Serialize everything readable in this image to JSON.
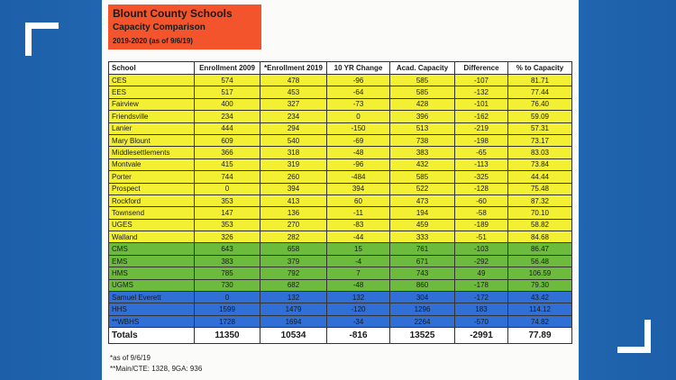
{
  "header": {
    "title": "Blount County Schools",
    "subtitle": "Capacity Comparison",
    "date": "2019-2020 (as of 9/6/19)"
  },
  "table": {
    "columns": [
      "School",
      "Enrollment 2009",
      "*Enrollment 2019",
      "10 YR Change",
      "Acad. Capacity",
      "Difference",
      "% to Capacity"
    ],
    "rows": [
      [
        "CES",
        "574",
        "478",
        "-96",
        "585",
        "-107",
        "81.71"
      ],
      [
        "EES",
        "517",
        "453",
        "-64",
        "585",
        "-132",
        "77.44"
      ],
      [
        "Fairview",
        "400",
        "327",
        "-73",
        "428",
        "-101",
        "76.40"
      ],
      [
        "Friendsville",
        "234",
        "234",
        "0",
        "396",
        "-162",
        "59.09"
      ],
      [
        "Lanier",
        "444",
        "294",
        "-150",
        "513",
        "-219",
        "57.31"
      ],
      [
        "Mary Blount",
        "609",
        "540",
        "-69",
        "738",
        "-198",
        "73.17"
      ],
      [
        "Middlesettlements",
        "366",
        "318",
        "-48",
        "383",
        "-65",
        "83.03"
      ],
      [
        "Montvale",
        "415",
        "319",
        "-96",
        "432",
        "-113",
        "73.84"
      ],
      [
        "Porter",
        "744",
        "260",
        "-484",
        "585",
        "-325",
        "44.44"
      ],
      [
        "Prospect",
        "0",
        "394",
        "394",
        "522",
        "-128",
        "75.48"
      ],
      [
        "Rockford",
        "353",
        "413",
        "60",
        "473",
        "-60",
        "87.32"
      ],
      [
        "Townsend",
        "147",
        "136",
        "-11",
        "194",
        "-58",
        "70.10"
      ],
      [
        "UGES",
        "353",
        "270",
        "-83",
        "459",
        "-189",
        "58.82"
      ],
      [
        "Walland",
        "326",
        "282",
        "-44",
        "333",
        "-51",
        "84.68"
      ],
      [
        "CMS",
        "643",
        "658",
        "15",
        "761",
        "-103",
        "86.47"
      ],
      [
        "EMS",
        "383",
        "379",
        "-4",
        "671",
        "-292",
        "56.48"
      ],
      [
        "HMS",
        "785",
        "792",
        "7",
        "743",
        "49",
        "106.59"
      ],
      [
        "UGMS",
        "730",
        "682",
        "-48",
        "860",
        "-178",
        "79.30"
      ],
      [
        "Samuel Everett",
        "0",
        "132",
        "132",
        "304",
        "-172",
        "43.42"
      ],
      [
        "HHS",
        "1599",
        "1479",
        "-120",
        "1296",
        "183",
        "114.12"
      ],
      [
        "**WBHS",
        "1728",
        "1694",
        "-34",
        "2264",
        "-570",
        "74.82"
      ]
    ],
    "totals": [
      "Totals",
      "11350",
      "10534",
      "-816",
      "13525",
      "-2991",
      "77.89"
    ]
  },
  "footnotes": [
    "*as of 9/6/19",
    "**Main/CTE: 1328, 9GA: 936"
  ]
}
